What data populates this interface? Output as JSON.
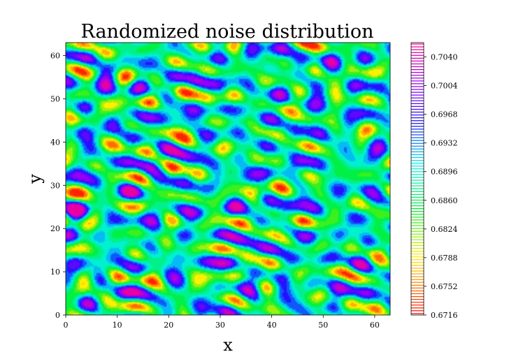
{
  "chart_data": {
    "type": "heatmap",
    "subtype": "filled-contour",
    "title": "Randomized noise distribution",
    "xlabel": "x",
    "ylabel": "y",
    "xlim": [
      0,
      63
    ],
    "ylim": [
      0,
      63
    ],
    "x_ticks": [
      "0",
      "10",
      "20",
      "30",
      "40",
      "50",
      "60"
    ],
    "y_ticks": [
      "0",
      "10",
      "20",
      "30",
      "40",
      "50",
      "60"
    ],
    "colormap": "gist_rainbow_r",
    "colorbar": {
      "range": [
        0.6716,
        0.7058
      ],
      "ticks": [
        "0.6716",
        "0.6752",
        "0.6788",
        "0.6824",
        "0.6860",
        "0.6896",
        "0.6932",
        "0.6968",
        "0.7004",
        "0.7040"
      ],
      "levels": 96
    },
    "grid": false,
    "legend": "colorbar-right"
  },
  "colors": {
    "low": "#ff0000",
    "yellow": "#ffee00",
    "green": "#00ee22",
    "cyan": "#00eeee",
    "blue": "#1111ff",
    "violet": "#8a00ff",
    "high": "#ff0077"
  }
}
